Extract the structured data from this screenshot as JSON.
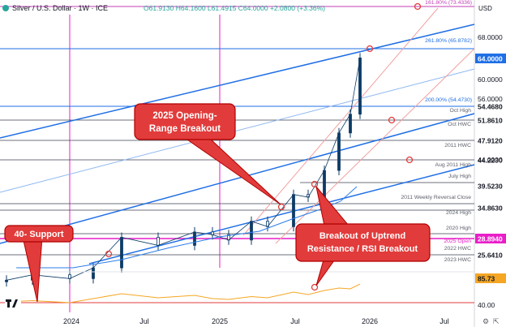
{
  "header": {
    "symbol": "Silver / U.S. Dollar · 1W · ICE",
    "ohlc": "O61.9130 H64.1600 L61.4915 C64.0000 +2.0800 (+3.36%)"
  },
  "chart_data": {
    "type": "line",
    "price_axis": {
      "unit": "USD",
      "ticks": [
        68,
        60,
        56,
        44,
        40
      ],
      "tick_labels": [
        "68.0000",
        "60.0000",
        "56.0000",
        "44.0000",
        "40.00"
      ]
    },
    "time_axis": {
      "labels": [
        "2024",
        "Jul",
        "2025",
        "Jul",
        "2026",
        "Jul"
      ]
    },
    "series": [
      {
        "name": "",
        "kind": "candles",
        "x": [
          "2023-09",
          "2023-11",
          "2024-01",
          "2024-03",
          "2024-05",
          "2024-07",
          "2024-09",
          "2024-11",
          "2025-01",
          "2025-03",
          "2025-05",
          "2025-07",
          "2025-08",
          "2025-09",
          "2025-10",
          "2025-11",
          "2025-12"
        ],
        "values": [
          22.5,
          23.5,
          22.8,
          24.8,
          30.5,
          29.0,
          31.5,
          31.0,
          30.0,
          33.5,
          32.5,
          38.5,
          38.0,
          43.0,
          50.0,
          53.5,
          64.0
        ]
      },
      {
        "name": "",
        "kind": "rsi",
        "values": [
          42,
          45,
          40,
          50,
          62,
          52,
          58,
          50,
          48,
          55,
          52,
          66,
          60,
          70,
          76,
          74,
          85.73
        ]
      }
    ],
    "level_tags": [
      {
        "value": 64.0,
        "text": "64.0000",
        "color": "#1f6fe5",
        "text_color": "#ffffff"
      },
      {
        "value": 54.468,
        "text": "54.4680",
        "color": "#ffffff",
        "text_color": "#131722"
      },
      {
        "value": 51.861,
        "text": "51.8610",
        "color": "#ffffff",
        "text_color": "#131722"
      },
      {
        "value": 47.912,
        "text": "47.9120",
        "color": "#ffffff",
        "text_color": "#131722"
      },
      {
        "value": 44.223,
        "text": "44.2230",
        "color": "#ffffff",
        "text_color": "#131722"
      },
      {
        "value": 39.523,
        "text": "39.5230",
        "color": "#ffffff",
        "text_color": "#131722"
      },
      {
        "value": 34.863,
        "text": "34.8630",
        "color": "#ffffff",
        "text_color": "#131722"
      },
      {
        "value": 28.894,
        "text": "28.8940",
        "color": "#e91ec8",
        "text_color": "#ffffff"
      },
      {
        "value": 25.641,
        "text": "25.6410",
        "color": "#ffffff",
        "text_color": "#131722"
      },
      {
        "value": 85.73,
        "text": "85.73",
        "color": "#f5a623",
        "text_color": "#131722",
        "pane": "rsi"
      }
    ],
    "level_labels": [
      {
        "text": "161.80% (73.4336)",
        "color": "#c23fb6"
      },
      {
        "text": "261.80% (65.8782)",
        "color": "#1f6fe5"
      },
      {
        "text": "200.00% (54.4730)",
        "color": "#1f6fe5"
      },
      {
        "text": "Oct High",
        "color": "#5d606b"
      },
      {
        "text": "Oct HWC",
        "color": "#5d606b"
      },
      {
        "text": "2011 HWC",
        "color": "#5d606b"
      },
      {
        "text": "Aug 2011 High",
        "color": "#5d606b"
      },
      {
        "text": "July High",
        "color": "#5d606b"
      },
      {
        "text": "2011 Weekly Reversal Close",
        "color": "#5d606b"
      },
      {
        "text": "2024 High",
        "color": "#5d606b"
      },
      {
        "text": "2020 High",
        "color": "#5d606b"
      },
      {
        "text": "2025 Open",
        "color": "#e91ec8"
      },
      {
        "text": "2022 HWC",
        "color": "#5d606b"
      },
      {
        "text": "2023 HWC",
        "color": "#5d606b"
      }
    ],
    "callouts": [
      {
        "text": "2025 Opening-\nRange Breakout"
      },
      {
        "text": "Breakout of Uptrend\nResistance / RSI Breakout"
      },
      {
        "text": "40- Support"
      }
    ]
  },
  "colors": {
    "up": "#26a69a",
    "down": "#ef5350",
    "candle": "#0d3b66",
    "trendline": "#1f6fe5",
    "fib_pink": "#e91ec8",
    "callout_bg": "#e23b3b",
    "callout_border": "#b00000",
    "rsi": "#f5a623"
  }
}
